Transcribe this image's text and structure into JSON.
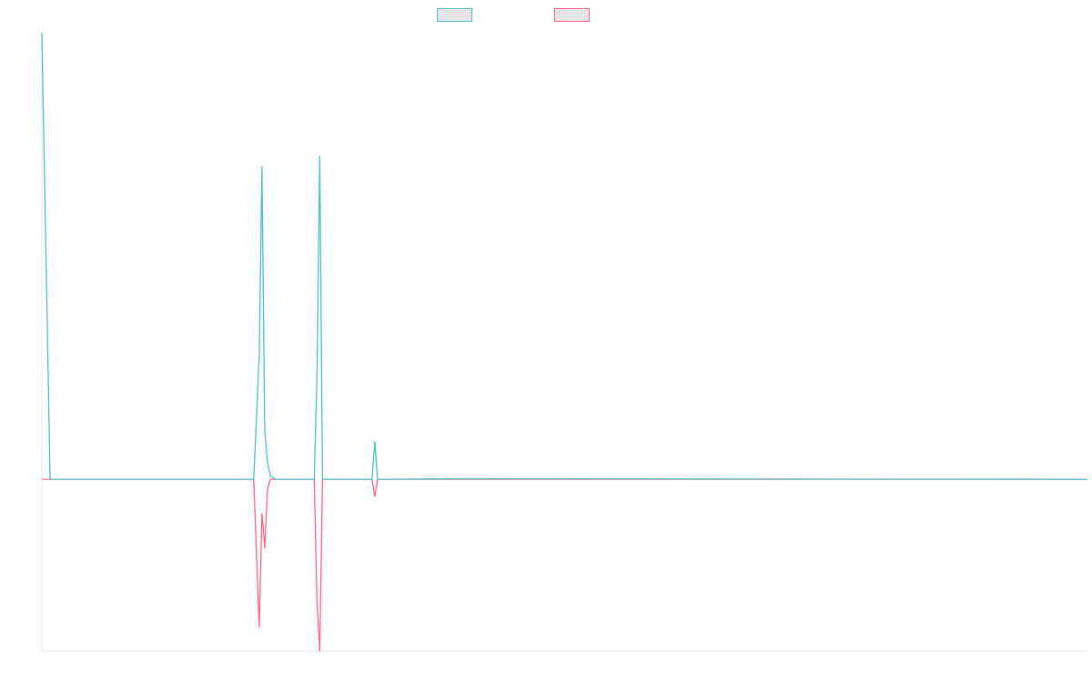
{
  "chart_data": {
    "type": "line",
    "title": "",
    "xlabel": "",
    "ylabel": "",
    "grid": false,
    "legend_position": "top-center",
    "x": [
      0,
      3,
      75,
      77,
      79,
      80,
      81,
      82,
      83,
      85,
      87,
      99,
      100,
      101,
      102,
      103,
      120,
      121,
      122,
      123,
      124,
      150,
      380
    ],
    "ylim": [
      -100,
      260
    ],
    "series": [
      {
        "name": "",
        "color": "#4bc0c0",
        "values": [
          260,
          0,
          0,
          0,
          72,
          182,
          28,
          10,
          2,
          0,
          0,
          0,
          62,
          188,
          0,
          0,
          0,
          22,
          0,
          0,
          0,
          0.3,
          0
        ]
      },
      {
        "name": "",
        "color": "#ff6384",
        "values": [
          0,
          0,
          0,
          0,
          -86,
          -20,
          -40,
          -6,
          0,
          0,
          0,
          0,
          -72,
          -100,
          0,
          0,
          0,
          -10,
          0,
          0,
          0,
          0,
          0
        ]
      }
    ]
  }
}
